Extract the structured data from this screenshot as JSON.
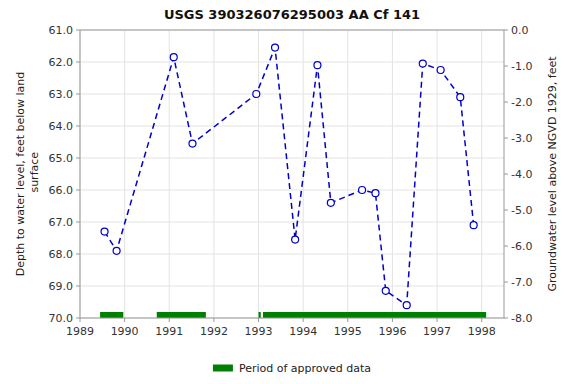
{
  "chart_data": {
    "type": "line",
    "title": "USGS 390326076295003 AA Cf 141",
    "ylabel": "Depth to water level, feet below land\n surface",
    "y2label": "Groundwater level above NGVD 1929, feet",
    "x": [
      1989.55,
      1989.82,
      1991.1,
      1991.52,
      1992.95,
      1993.37,
      1993.82,
      1994.32,
      1994.62,
      1995.32,
      1995.62,
      1995.85,
      1996.32,
      1996.68,
      1997.08,
      1997.52,
      1997.82
    ],
    "series": [
      {
        "type": "line",
        "color": "#0000cc",
        "line_style": "dashed",
        "marker": "circle",
        "values": [
          67.3,
          67.9,
          61.85,
          64.55,
          63.0,
          61.55,
          67.55,
          62.1,
          66.4,
          66.0,
          66.1,
          69.15,
          69.6,
          62.05,
          62.25,
          63.1,
          67.1
        ]
      },
      {
        "type": "range",
        "name": "Period of approved data",
        "color": "#008000",
        "ranges": [
          [
            1989.45,
            1989.97
          ],
          [
            1990.72,
            1991.82
          ],
          [
            1993.0,
            1993.05
          ],
          [
            1993.1,
            1996.62
          ],
          [
            1996.0,
            1998.1
          ]
        ]
      }
    ],
    "xlim": [
      1989.0,
      1998.5
    ],
    "xticks": [
      1989,
      1990,
      1991,
      1992,
      1993,
      1994,
      1995,
      1996,
      1997,
      1998
    ],
    "ylim": [
      70.0,
      61.0
    ],
    "yticks": [
      {
        "value": 61.0,
        "label": "61.0"
      },
      {
        "value": 62.0,
        "label": "62.0"
      },
      {
        "value": 63.0,
        "label": "63.0"
      },
      {
        "value": 64.0,
        "label": "64.0"
      },
      {
        "value": 65.0,
        "label": "65.0"
      },
      {
        "value": 66.0,
        "label": "66.0"
      },
      {
        "value": 67.0,
        "label": "67.0"
      },
      {
        "value": 68.0,
        "label": "68.0"
      },
      {
        "value": 69.0,
        "label": "69.0"
      },
      {
        "value": 70.0,
        "label": "70.0"
      }
    ],
    "y2lim": [
      -8.0,
      0.0
    ],
    "y2ticks": [
      {
        "value": 0.0,
        "label": "0.0"
      },
      {
        "value": -1.0,
        "label": "-1.0"
      },
      {
        "value": -2.0,
        "label": "-2.0"
      },
      {
        "value": -3.0,
        "label": "-3.0"
      },
      {
        "value": -4.0,
        "label": "-4.0"
      },
      {
        "value": -5.0,
        "label": "-5.0"
      },
      {
        "value": -6.0,
        "label": "-6.0"
      },
      {
        "value": -7.0,
        "label": "-7.0"
      },
      {
        "value": -8.0,
        "label": "-8.0"
      }
    ],
    "grid": true,
    "legend": "bottom"
  }
}
